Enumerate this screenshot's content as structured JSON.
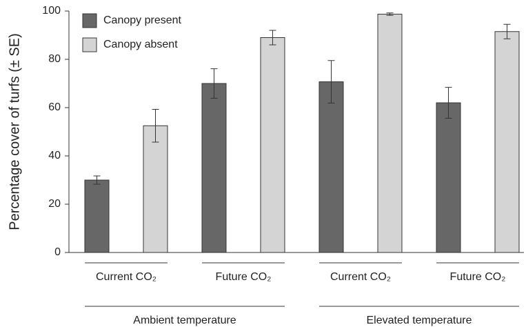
{
  "chart_data": {
    "type": "bar",
    "y_label": "Percentage cover of turfs (± SE)",
    "categories": [
      "Current CO₂",
      "Future CO₂",
      "Current CO₂",
      "Future CO₂"
    ],
    "groups": [
      "Ambient temperature",
      "Elevated temperature"
    ],
    "series": [
      {
        "name": "Canopy present",
        "color": "#676767",
        "values": [
          30,
          70,
          70.7,
          62
        ],
        "errors": [
          1.7,
          6.1,
          8.8,
          6.4
        ]
      },
      {
        "name": "Canopy absent",
        "color": "#d4d4d4",
        "values": [
          52.5,
          89,
          98.7,
          91.5
        ],
        "errors": [
          6.8,
          3,
          0.5,
          3
        ]
      }
    ],
    "ylim": [
      0,
      100
    ],
    "yticks": [
      0,
      20,
      40,
      60,
      80,
      100
    ],
    "legend": "upper left"
  }
}
